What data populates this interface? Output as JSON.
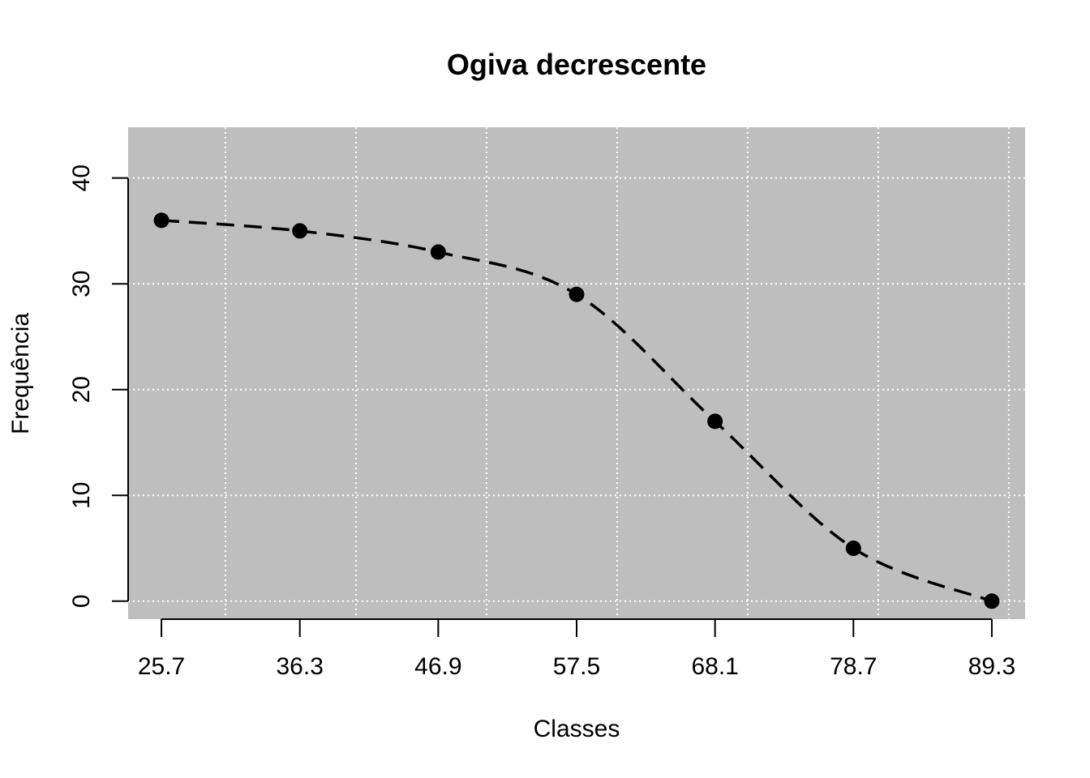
{
  "chart_data": {
    "type": "line",
    "title": "Ogiva decrescente",
    "xlabel": "Classes",
    "ylabel": "Frequência",
    "x_tick_labels": [
      "25.7",
      "36.3",
      "46.9",
      "57.5",
      "68.1",
      "78.7",
      "89.3"
    ],
    "y_tick_labels": [
      "0",
      "10",
      "20",
      "30",
      "40"
    ],
    "x": [
      25.7,
      36.3,
      46.9,
      57.5,
      68.1,
      78.7,
      89.3
    ],
    "y": [
      36,
      35,
      33,
      29,
      17,
      5,
      0
    ],
    "xlim": [
      23.15,
      91.85
    ],
    "ylim": [
      -1.7,
      44.8
    ],
    "x_ticks": [
      25.7,
      36.3,
      46.9,
      57.5,
      68.1,
      78.7,
      89.3
    ],
    "y_ticks": [
      0,
      10,
      20,
      30,
      40
    ],
    "x_grid": [
      30.6,
      40.6,
      50.6,
      60.6,
      70.6,
      80.6,
      90.6
    ],
    "y_grid": [
      0,
      10,
      20,
      30,
      40
    ],
    "grid": true,
    "line_style": "dashed",
    "marker": "filled-circle",
    "colors": {
      "panel_background": "#bebebe",
      "grid": "#ffffff",
      "line": "#000000",
      "marker": "#000000"
    }
  }
}
